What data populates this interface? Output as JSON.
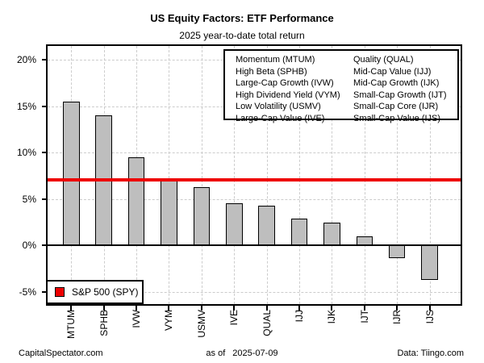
{
  "header": {
    "title": "US Equity Factors: ETF Performance",
    "subtitle": "2025 year-to-date total return"
  },
  "chart_data": {
    "type": "bar",
    "title": "US Equity Factors: ETF Performance",
    "subtitle": "2025 year-to-date total return",
    "categories": [
      "MTUM",
      "SPHB",
      "IVW",
      "VYM",
      "USMV",
      "IVE",
      "QUAL",
      "IJJ",
      "IJK",
      "IJT",
      "IJR",
      "IJS"
    ],
    "values": [
      15.5,
      14.0,
      9.5,
      7.1,
      6.3,
      4.5,
      4.3,
      2.9,
      2.5,
      1.0,
      -1.4,
      -3.7
    ],
    "unit": "%",
    "ylim": [
      -6.5,
      21.5
    ],
    "yticks": [
      20,
      15,
      10,
      5,
      0,
      -5
    ],
    "ytick_labels": [
      "20%",
      "15%",
      "10%",
      "5%",
      "0%",
      "-5%"
    ],
    "grid": true,
    "benchmark": {
      "label": "S&P 500 (SPY)",
      "value": 7.1
    },
    "colors": {
      "bar_fill": "#bebebe",
      "bar_border": "#000000",
      "benchmark_line": "#ee0000",
      "gridline": "#cccccc"
    }
  },
  "legend": {
    "columns": [
      [
        "Momentum (MTUM)",
        "High Beta (SPHB)",
        "Large-Cap Growth (IVW)",
        "High Dividend Yield (VYM)",
        "Low Volatility (USMV)",
        "Large-Cap Value (IVE)"
      ],
      [
        "Quality (QUAL)",
        "Mid-Cap Value (IJJ)",
        "Mid-Cap Growth (IJK)",
        "Small-Cap Growth (IJT)",
        "Small-Cap Core (IJR)",
        "Small-Cap Value (IJS)"
      ]
    ]
  },
  "benchmark_legend": {
    "label": "S&P 500 (SPY)"
  },
  "footer": {
    "left": "CapitalSpectator.com",
    "center_prefix": "as of",
    "center_date": "2025-07-09",
    "right": "Data: Tiingo.com"
  }
}
